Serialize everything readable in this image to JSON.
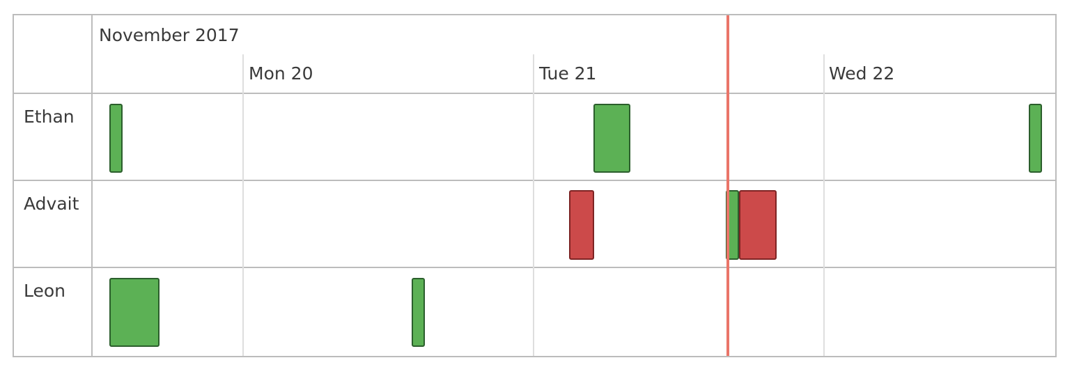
{
  "header": {
    "month_label": "November 2017",
    "days": [
      "Mon 20",
      "Tue 21",
      "Wed 22"
    ]
  },
  "resources": [
    {
      "name": "Ethan"
    },
    {
      "name": "Advait"
    },
    {
      "name": "Leon"
    }
  ],
  "events": [
    {
      "resource": 0,
      "status": "green"
    },
    {
      "resource": 0,
      "status": "green"
    },
    {
      "resource": 0,
      "status": "green"
    },
    {
      "resource": 1,
      "status": "red"
    },
    {
      "resource": 1,
      "status": "green"
    },
    {
      "resource": 1,
      "status": "red"
    },
    {
      "resource": 2,
      "status": "green"
    },
    {
      "resource": 2,
      "status": "green"
    }
  ],
  "colors": {
    "accepted": "#5cb155",
    "rejected": "#cc4a4a",
    "now_indicator": "#ea7569"
  }
}
